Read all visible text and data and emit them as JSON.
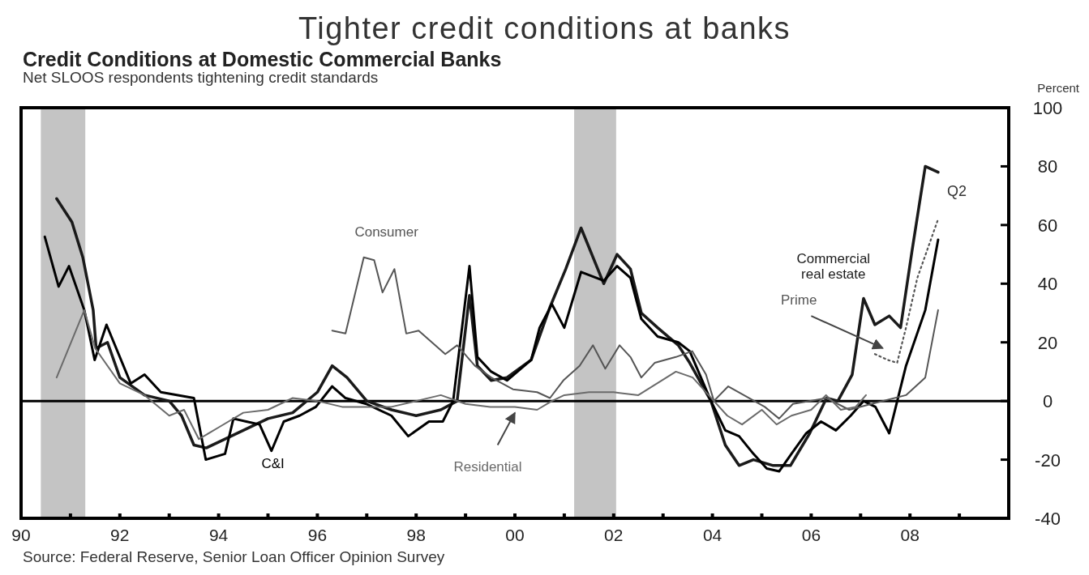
{
  "chart_data": {
    "type": "line",
    "title": "Tighter credit conditions at banks",
    "subtitle": "Credit Conditions at Domestic Commercial Banks",
    "ylabel": "Percent",
    "annotations": [
      "Net SLOOS respondents tightening credit standards",
      "Q2",
      "Source: Federal Reserve, Senior Loan Officer Opinion Survey"
    ],
    "xlim": [
      1990,
      2010
    ],
    "ylim": [
      -40,
      100
    ],
    "xticks": [
      {
        "value": 1990,
        "label": "90"
      },
      {
        "value": 1991,
        "label": null
      },
      {
        "value": 1992,
        "label": "92"
      },
      {
        "value": 1993,
        "label": null
      },
      {
        "value": 1994,
        "label": "94"
      },
      {
        "value": 1995,
        "label": null
      },
      {
        "value": 1996,
        "label": "96"
      },
      {
        "value": 1997,
        "label": null
      },
      {
        "value": 1998,
        "label": "98"
      },
      {
        "value": 1999,
        "label": null
      },
      {
        "value": 2000,
        "label": "00"
      },
      {
        "value": 2001,
        "label": null
      },
      {
        "value": 2002,
        "label": "02"
      },
      {
        "value": 2003,
        "label": null
      },
      {
        "value": 2004,
        "label": "04"
      },
      {
        "value": 2005,
        "label": null
      },
      {
        "value": 2006,
        "label": "06"
      },
      {
        "value": 2007,
        "label": null
      },
      {
        "value": 2008,
        "label": "08"
      },
      {
        "value": 2009,
        "label": null
      }
    ],
    "yticks": [
      -40,
      -20,
      0,
      20,
      40,
      60,
      80,
      100
    ],
    "tick_labels": "xy",
    "grid": false,
    "ref_lines": [
      {
        "axis": "y",
        "value": 0,
        "color": "#000000"
      }
    ],
    "bands": [
      {
        "axis": "x",
        "from": 1990.4,
        "to": 1991.3,
        "color": "#c4c4c4"
      },
      {
        "axis": "x",
        "from": 2001.2,
        "to": 2002.05,
        "color": "#c4c4c4"
      }
    ],
    "series": [
      {
        "name": "Commercial real estate",
        "color": "#1a1a1a",
        "line_style": "solid",
        "x": [
          1990.72,
          1991.03,
          1991.25,
          1991.46,
          1991.52,
          1991.75,
          1992.0,
          1992.5,
          1993.0,
          1993.25,
          1993.5,
          1993.75,
          1994.0,
          1994.5,
          1995.0,
          1995.5,
          1996.0,
          1996.3,
          1996.6,
          1997.0,
          1997.5,
          1998.0,
          1998.5,
          1998.83,
          1999.08,
          1999.24,
          1999.52,
          1999.84,
          2000.33,
          2000.71,
          2001.03,
          2001.34,
          2001.8,
          2002.07,
          2002.34,
          2002.56,
          2002.89,
          2003.31,
          2003.54,
          2003.97,
          2004.26,
          2004.54,
          2004.83,
          2005.23,
          2005.58,
          2005.97,
          2006.31,
          2006.54,
          2006.83,
          2007.06,
          2007.29,
          2007.58,
          2007.81,
          2008.04,
          2008.31,
          2008.57
        ],
        "values": [
          69,
          61,
          49,
          31,
          18,
          20,
          8,
          2,
          0,
          -5,
          -15,
          -16,
          -14,
          -10,
          -6,
          -4,
          3,
          12,
          8,
          0,
          -3,
          -5,
          -3,
          0,
          36,
          12,
          7,
          8,
          14,
          32,
          45,
          59,
          40,
          50,
          45,
          30,
          25,
          19,
          13,
          0,
          -15,
          -22,
          -20,
          -22,
          -22,
          -11,
          1,
          0,
          9,
          35,
          26,
          29,
          25,
          51,
          80,
          78
        ]
      },
      {
        "name": "C&I",
        "color": "#000000",
        "line_style": "solid",
        "x": [
          1990.48,
          1990.76,
          1990.97,
          1991.28,
          1991.49,
          1991.73,
          1992.22,
          1992.5,
          1992.83,
          1993.5,
          1993.74,
          1994.13,
          1994.3,
          1994.56,
          1994.83,
          1995.07,
          1995.32,
          1995.64,
          1995.97,
          1996.3,
          1996.57,
          1996.99,
          1997.5,
          1997.84,
          1998.26,
          1998.54,
          1998.75,
          1999.08,
          1999.24,
          1999.52,
          1999.84,
          2000.33,
          2000.5,
          2000.75,
          2001.0,
          2001.34,
          2001.8,
          2002.07,
          2002.34,
          2002.56,
          2002.89,
          2003.31,
          2003.54,
          2003.97,
          2004.26,
          2004.54,
          2004.83,
          2005.1,
          2005.35,
          2005.6,
          2005.9,
          2006.2,
          2006.5,
          2006.8,
          2007.06,
          2007.3,
          2007.58,
          2007.92,
          2008.31,
          2008.57
        ],
        "values": [
          56,
          39,
          46,
          31,
          14,
          26,
          6,
          9,
          3,
          1,
          -20,
          -18,
          -6,
          -7,
          -8,
          -17,
          -7,
          -5,
          -2,
          5,
          1,
          -1,
          -5,
          -12,
          -7,
          -7,
          0,
          46,
          15,
          10,
          7,
          14,
          25,
          33,
          25,
          44,
          41,
          46,
          42,
          28,
          22,
          20,
          17,
          0,
          -10,
          -12,
          -18,
          -23,
          -24,
          -18,
          -11,
          -7,
          -10,
          -5,
          0,
          -2,
          -11,
          12,
          31,
          55
        ]
      },
      {
        "name": "Consumer",
        "color": "#555555",
        "line_style": "solid",
        "x": [
          1996.3,
          1996.57,
          1996.94,
          1997.15,
          1997.32,
          1997.56,
          1997.8,
          1998.05,
          1998.59,
          1998.83,
          1999.19,
          1999.52,
          1999.96,
          2000.45,
          2000.71,
          2000.98,
          2001.31,
          2001.58,
          2001.83,
          2002.12,
          2002.34,
          2002.56,
          2002.83,
          2003.26,
          2003.59,
          2003.87,
          2004.03,
          2004.32,
          2005.06,
          2005.35,
          2005.63,
          2006.31,
          2006.77,
          2007.22,
          2007.92,
          2008.31,
          2008.57
        ],
        "values": [
          24,
          23,
          49,
          48,
          37,
          45,
          23,
          24,
          16,
          19,
          12,
          8,
          4,
          3,
          1,
          7,
          12,
          19,
          11,
          19,
          15,
          8,
          13,
          15,
          17,
          9,
          0,
          5,
          -2,
          -6,
          -1,
          1,
          -3,
          -1,
          2,
          8,
          31
        ]
      },
      {
        "name": "Residential",
        "color": "#6a6a6a",
        "line_style": "solid",
        "x": [
          1990.72,
          1991.28,
          1991.5,
          1992.0,
          1992.5,
          1993.0,
          1993.3,
          1993.6,
          1994.0,
          1994.5,
          1995.0,
          1995.5,
          1996.0,
          1996.5,
          1997.0,
          1997.5,
          1998.0,
          1998.5,
          1999.0,
          1999.5,
          2000.0,
          2000.45,
          2000.75,
          2001.0,
          2001.5,
          2002.0,
          2002.5,
          2003.26,
          2003.6,
          2004.03,
          2004.3,
          2004.6,
          2005.0,
          2005.3,
          2005.6,
          2006.0,
          2006.3,
          2006.6,
          2006.9,
          2007.11
        ],
        "values": [
          8,
          31,
          18,
          6,
          2,
          -5,
          -3,
          -13,
          -9,
          -4,
          -3,
          1,
          0,
          -2,
          -2,
          -2,
          0,
          2,
          -1,
          -2,
          -2,
          -3,
          0,
          2,
          3,
          3,
          2,
          10,
          8,
          0,
          -5,
          -8,
          -3,
          -8,
          -5,
          -3,
          2,
          -3,
          -2,
          2
        ]
      },
      {
        "name": "Prime",
        "color": "#555555",
        "line_style": "dotted",
        "x": [
          2007.29,
          2007.55,
          2007.74,
          2007.92,
          2008.15,
          2008.57
        ],
        "values": [
          16,
          14,
          13,
          25,
          42,
          62
        ]
      }
    ]
  }
}
